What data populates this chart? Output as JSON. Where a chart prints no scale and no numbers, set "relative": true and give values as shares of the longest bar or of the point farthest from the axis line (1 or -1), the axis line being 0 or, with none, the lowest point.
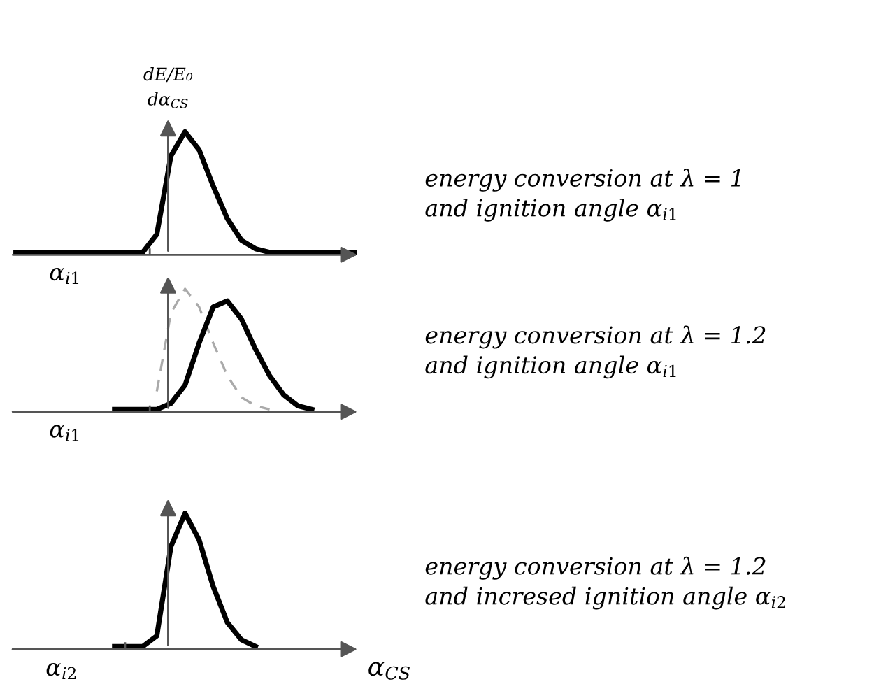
{
  "chart_data": [
    {
      "type": "line",
      "relative": true,
      "categories": [
        null,
        null,
        null,
        null,
        null,
        null,
        null,
        null,
        null,
        null,
        null,
        null,
        null,
        null,
        null,
        null,
        null,
        null,
        null,
        null,
        null,
        null,
        null,
        null,
        null
      ],
      "series": [
        {
          "color": "#000000",
          "values": [
            0,
            0,
            0,
            0,
            0,
            0,
            0,
            0,
            0,
            0,
            0.15,
            0.8,
            1.0,
            0.85,
            0.55,
            0.28,
            0.1,
            0.03,
            0,
            0,
            0,
            0,
            0,
            0,
            0
          ]
        }
      ],
      "ylabel": "dE/E₀\ndα$_{CS}$",
      "annotations": [
        "α$_{i1}$",
        "energy conversion at λ = 1\nand ignition angle α$_{i1}$"
      ]
    },
    {
      "type": "line",
      "relative": true,
      "categories": [
        null,
        null,
        null,
        null,
        null,
        null,
        null,
        null,
        null,
        null,
        null,
        null,
        null,
        null,
        null,
        null,
        null,
        null,
        null,
        null,
        null,
        null,
        null,
        null,
        null
      ],
      "series": [
        {
          "color": "#aaaaaa",
          "line_style": "dashed",
          "values": [
            null,
            null,
            null,
            null,
            null,
            null,
            null,
            null,
            null,
            null,
            0.15,
            0.8,
            1.0,
            0.85,
            0.55,
            0.28,
            0.1,
            0.03,
            0,
            null,
            null,
            null,
            null,
            null,
            null
          ]
        },
        {
          "color": "#000000",
          "values": [
            null,
            null,
            null,
            null,
            null,
            null,
            null,
            0,
            0,
            0,
            0,
            0.05,
            0.2,
            0.55,
            0.85,
            0.9,
            0.75,
            0.5,
            0.28,
            0.12,
            0.03,
            0,
            null,
            null,
            null
          ]
        }
      ],
      "annotations": [
        "α$_{i1}$",
        "energy conversion at λ = 1.2\nand ignition angle α$_{i1}$"
      ]
    },
    {
      "type": "line",
      "relative": true,
      "categories": [
        null,
        null,
        null,
        null,
        null,
        null,
        null,
        null,
        null,
        null,
        null,
        null,
        null,
        null,
        null,
        null,
        null,
        null,
        null,
        null,
        null,
        null,
        null,
        null,
        null
      ],
      "series": [
        {
          "color": "#000000",
          "values": [
            null,
            null,
            null,
            null,
            null,
            null,
            null,
            0,
            0,
            0,
            0.08,
            0.75,
            1.0,
            0.8,
            0.45,
            0.18,
            0.05,
            0,
            null,
            null,
            null,
            null,
            null,
            null,
            null
          ]
        }
      ],
      "xlabel": "α$_{CS}$",
      "annotations": [
        "α$_{i2}$",
        "energy conversion at λ = 1.2\nand incresed ignition angle α$_{i2}$"
      ]
    }
  ]
}
